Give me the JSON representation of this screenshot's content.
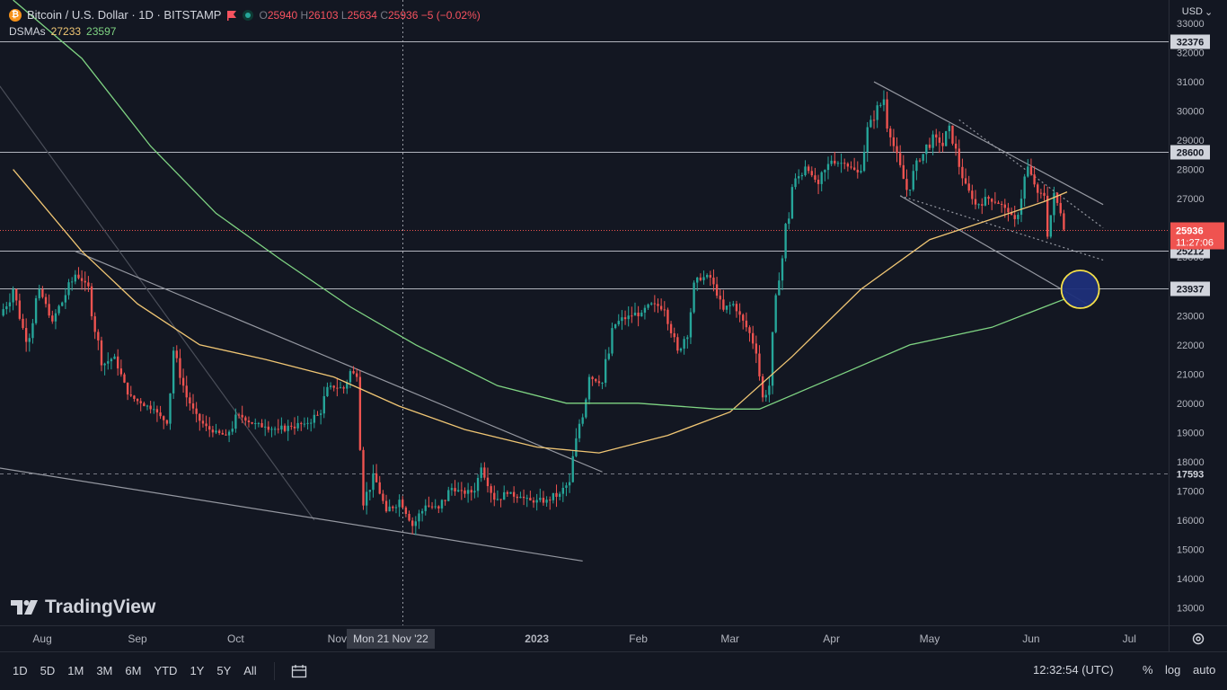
{
  "header": {
    "symbol": "Bitcoin / U.S. Dollar · 1D · BITSTAMP",
    "open_label": "O",
    "open": "25940",
    "high_label": "H",
    "high": "26103",
    "low_label": "L",
    "low": "25634",
    "close_label": "C",
    "close": "25936",
    "change": "−5 (−0.02%)",
    "indicator_name": "DSMAs",
    "ma1_value": "27233",
    "ma2_value": "23597"
  },
  "currency": "USD",
  "logo_text": "TradingView",
  "crosshair_label": "Mon 21 Nov '22",
  "bottom_bar": {
    "ranges": [
      "1D",
      "5D",
      "1M",
      "3M",
      "6M",
      "YTD",
      "1Y",
      "5Y",
      "All"
    ],
    "time": "12:32:54 (UTC)",
    "percent": "%",
    "log": "log",
    "auto": "auto"
  },
  "colors": {
    "background": "#131722",
    "up": "#26a69a",
    "down": "#ef5350",
    "ma_fast": "#f0c674",
    "ma_slow": "#7fd483",
    "highlight_fill": "#1e2f7a",
    "highlight_stroke": "#f5e04a"
  },
  "chart_data": {
    "type": "candlestick",
    "x_ticks": [
      "Aug",
      "Sep",
      "Oct",
      "Nov",
      "2023",
      "Feb",
      "Mar",
      "Apr",
      "May",
      "Jun",
      "Jul"
    ],
    "y_ticks": [
      13000,
      14000,
      15000,
      16000,
      17000,
      18000,
      19000,
      20000,
      21000,
      22000,
      23000,
      24000,
      25000,
      26000,
      27000,
      28000,
      29000,
      30000,
      31000,
      32000,
      33000
    ],
    "y_range": [
      12400,
      33800
    ],
    "horizontal_levels": [
      {
        "value": 32376,
        "label": "32376",
        "style": "solid"
      },
      {
        "value": 28600,
        "label": "28600",
        "style": "solid"
      },
      {
        "value": 25212,
        "label": "25212",
        "style": "solid"
      },
      {
        "value": 23937,
        "label": "23937",
        "style": "solid"
      },
      {
        "value": 17593,
        "label": "17593",
        "style": "dashed"
      }
    ],
    "last_price": {
      "value": 25936,
      "label": "25936",
      "countdown": "11:27:06"
    },
    "moving_averages": [
      {
        "name": "DSMA 1",
        "last": 27233,
        "color": "#f0c674",
        "points": [
          [
            "2022-07-25",
            28000
          ],
          [
            "2022-08-15",
            25200
          ],
          [
            "2022-09-01",
            23400
          ],
          [
            "2022-09-20",
            22000
          ],
          [
            "2022-10-10",
            21500
          ],
          [
            "2022-10-31",
            20900
          ],
          [
            "2022-11-20",
            19900
          ],
          [
            "2022-12-10",
            19100
          ],
          [
            "2023-01-01",
            18500
          ],
          [
            "2023-01-20",
            18300
          ],
          [
            "2023-02-10",
            18900
          ],
          [
            "2023-03-01",
            19700
          ],
          [
            "2023-03-20",
            21600
          ],
          [
            "2023-04-10",
            23900
          ],
          [
            "2023-05-01",
            25600
          ],
          [
            "2023-05-20",
            26300
          ],
          [
            "2023-06-05",
            26900
          ],
          [
            "2023-06-12",
            27233
          ]
        ]
      },
      {
        "name": "DSMA 2",
        "last": 23597,
        "color": "#7fd483",
        "points": [
          [
            "2022-07-25",
            33800
          ],
          [
            "2022-08-15",
            31800
          ],
          [
            "2022-09-05",
            28800
          ],
          [
            "2022-09-25",
            26500
          ],
          [
            "2022-10-15",
            24900
          ],
          [
            "2022-11-05",
            23300
          ],
          [
            "2022-11-25",
            22000
          ],
          [
            "2022-12-20",
            20600
          ],
          [
            "2023-01-10",
            20000
          ],
          [
            "2023-02-01",
            20000
          ],
          [
            "2023-02-25",
            19800
          ],
          [
            "2023-03-10",
            19800
          ],
          [
            "2023-03-31",
            20800
          ],
          [
            "2023-04-25",
            22000
          ],
          [
            "2023-05-20",
            22600
          ],
          [
            "2023-06-12",
            23597
          ]
        ]
      }
    ],
    "trendlines": [
      {
        "from": [
          "2022-07-20",
          31000
        ],
        "to": [
          "2022-10-25",
          16000
        ],
        "style": "solid-faint"
      },
      {
        "from": [
          "2022-07-20",
          17800
        ],
        "to": [
          "2023-01-15",
          14600
        ],
        "style": "solid"
      },
      {
        "from": [
          "2022-08-13",
          25200
        ],
        "to": [
          "2023-01-21",
          17650
        ],
        "style": "solid"
      },
      {
        "from": [
          "2023-04-14",
          31000
        ],
        "to": [
          "2023-06-23",
          26800
        ],
        "style": "solid"
      },
      {
        "from": [
          "2023-04-22",
          27100
        ],
        "to": [
          "2023-06-18",
          23400
        ],
        "style": "solid"
      },
      {
        "from": [
          "2023-05-10",
          29700
        ],
        "to": [
          "2023-06-23",
          26000
        ],
        "style": "dotted"
      },
      {
        "from": [
          "2023-04-22",
          27100
        ],
        "to": [
          "2023-06-23",
          24900
        ],
        "style": "dotted"
      }
    ],
    "highlight": {
      "date": "2023-06-16",
      "value": 23900
    },
    "crosshair_date": "2022-11-21",
    "candles": [
      [
        "2022-07-22",
        23000,
        23900
      ],
      [
        "2022-07-26",
        23900,
        22100
      ],
      [
        "2022-07-30",
        22100,
        23900
      ],
      [
        "2022-08-03",
        23900,
        22800
      ],
      [
        "2022-08-07",
        22800,
        23700
      ],
      [
        "2022-08-11",
        23700,
        24400
      ],
      [
        "2022-08-14",
        24400,
        24000
      ],
      [
        "2022-08-18",
        24000,
        21300
      ],
      [
        "2022-08-22",
        21300,
        21600
      ],
      [
        "2022-08-26",
        21600,
        20300
      ],
      [
        "2022-08-30",
        20300,
        20000
      ],
      [
        "2022-09-03",
        20000,
        19800
      ],
      [
        "2022-09-07",
        19800,
        19300
      ],
      [
        "2022-09-11",
        19300,
        21800
      ],
      [
        "2022-09-13",
        21800,
        20200
      ],
      [
        "2022-09-17",
        20200,
        19400
      ],
      [
        "2022-09-21",
        19400,
        19000
      ],
      [
        "2022-09-25",
        19000,
        18900
      ],
      [
        "2022-09-29",
        18900,
        19600
      ],
      [
        "2022-10-03",
        19600,
        19300
      ],
      [
        "2022-10-07",
        19300,
        19200
      ],
      [
        "2022-10-11",
        19200,
        19100
      ],
      [
        "2022-10-15",
        19100,
        19200
      ],
      [
        "2022-10-19",
        19200,
        19300
      ],
      [
        "2022-10-23",
        19300,
        19600
      ],
      [
        "2022-10-27",
        19600,
        20600
      ],
      [
        "2022-10-31",
        20600,
        20500
      ],
      [
        "2022-11-04",
        20500,
        21100
      ],
      [
        "2022-11-06",
        21100,
        20900
      ],
      [
        "2022-11-08",
        20900,
        18400
      ],
      [
        "2022-11-09",
        18400,
        16500
      ],
      [
        "2022-11-10",
        16500,
        17600
      ],
      [
        "2022-11-13",
        17600,
        16300
      ],
      [
        "2022-11-17",
        16300,
        16700
      ],
      [
        "2022-11-21",
        16700,
        15800
      ],
      [
        "2022-11-25",
        15800,
        16500
      ],
      [
        "2022-11-29",
        16500,
        16400
      ],
      [
        "2022-12-03",
        16400,
        17100
      ],
      [
        "2022-12-07",
        17100,
        16900
      ],
      [
        "2022-12-11",
        16900,
        17000
      ],
      [
        "2022-12-14",
        17000,
        17800
      ],
      [
        "2022-12-16",
        17800,
        16700
      ],
      [
        "2022-12-20",
        16700,
        16900
      ],
      [
        "2022-12-24",
        16900,
        16800
      ],
      [
        "2022-12-28",
        16800,
        16600
      ],
      [
        "2023-01-01",
        16600,
        16700
      ],
      [
        "2023-01-05",
        16700,
        16900
      ],
      [
        "2023-01-09",
        16900,
        17300
      ],
      [
        "2023-01-12",
        17300,
        18800
      ],
      [
        "2023-01-14",
        18800,
        20900
      ],
      [
        "2023-01-18",
        20900,
        20700
      ],
      [
        "2023-01-22",
        20700,
        22700
      ],
      [
        "2023-01-26",
        22700,
        23000
      ],
      [
        "2023-01-30",
        23000,
        23100
      ],
      [
        "2023-02-03",
        23100,
        23400
      ],
      [
        "2023-02-07",
        23400,
        23200
      ],
      [
        "2023-02-10",
        23200,
        21800
      ],
      [
        "2023-02-14",
        21800,
        22200
      ],
      [
        "2023-02-16",
        22200,
        24300
      ],
      [
        "2023-02-20",
        24300,
        24300
      ],
      [
        "2023-02-24",
        24300,
        23200
      ],
      [
        "2023-02-28",
        23200,
        23400
      ],
      [
        "2023-03-03",
        23400,
        22400
      ],
      [
        "2023-03-08",
        22400,
        21700
      ],
      [
        "2023-03-10",
        21700,
        20200
      ],
      [
        "2023-03-12",
        20200,
        20600
      ],
      [
        "2023-03-14",
        20600,
        24200
      ],
      [
        "2023-03-17",
        24200,
        27400
      ],
      [
        "2023-03-21",
        27400,
        28100
      ],
      [
        "2023-03-25",
        28100,
        27500
      ],
      [
        "2023-03-29",
        27500,
        28300
      ],
      [
        "2023-04-02",
        28300,
        28200
      ],
      [
        "2023-04-06",
        28200,
        27900
      ],
      [
        "2023-04-10",
        27900,
        29700
      ],
      [
        "2023-04-14",
        29700,
        30400
      ],
      [
        "2023-04-18",
        30400,
        29400
      ],
      [
        "2023-04-19",
        29400,
        28800
      ],
      [
        "2023-04-21",
        28800,
        27300
      ],
      [
        "2023-04-25",
        27300,
        28300
      ],
      [
        "2023-04-29",
        28300,
        29200
      ],
      [
        "2023-05-03",
        29200,
        28800
      ],
      [
        "2023-05-06",
        28800,
        29500
      ],
      [
        "2023-05-08",
        29500,
        27700
      ],
      [
        "2023-05-12",
        27700,
        26800
      ],
      [
        "2023-05-16",
        26800,
        27000
      ],
      [
        "2023-05-20",
        27000,
        26800
      ],
      [
        "2023-05-24",
        26800,
        26300
      ],
      [
        "2023-05-28",
        26300,
        28100
      ],
      [
        "2023-06-01",
        28100,
        27200
      ],
      [
        "2023-06-04",
        27200,
        27100
      ],
      [
        "2023-06-06",
        27100,
        25700
      ],
      [
        "2023-06-07",
        25700,
        27200
      ],
      [
        "2023-06-09",
        27200,
        26500
      ],
      [
        "2023-06-11",
        26500,
        25940
      ],
      [
        "2023-06-12",
        25940,
        25936
      ]
    ]
  }
}
